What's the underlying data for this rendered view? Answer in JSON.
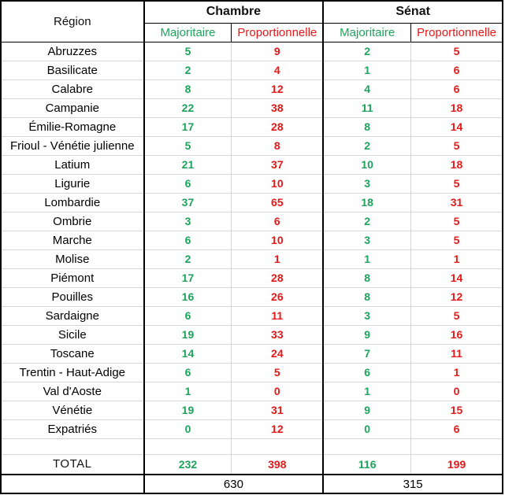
{
  "chart_data": {
    "type": "table",
    "header": {
      "region": "Région",
      "groups": [
        {
          "label": "Chambre",
          "subcolumns": [
            "Majoritaire",
            "Proportionnelle"
          ]
        },
        {
          "label": "Sénat",
          "subcolumns": [
            "Majoritaire",
            "Proportionnelle"
          ]
        }
      ]
    },
    "rows": [
      {
        "region": "Abruzzes",
        "values": [
          5,
          9,
          2,
          5
        ]
      },
      {
        "region": "Basilicate",
        "values": [
          2,
          4,
          1,
          6
        ]
      },
      {
        "region": "Calabre",
        "values": [
          8,
          12,
          4,
          6
        ]
      },
      {
        "region": "Campanie",
        "values": [
          22,
          38,
          11,
          18
        ]
      },
      {
        "region": "Émilie-Romagne",
        "values": [
          17,
          28,
          8,
          14
        ]
      },
      {
        "region": "Frioul - Vénétie julienne",
        "values": [
          5,
          8,
          2,
          5
        ]
      },
      {
        "region": "Latium",
        "values": [
          21,
          37,
          10,
          18
        ]
      },
      {
        "region": "Ligurie",
        "values": [
          6,
          10,
          3,
          5
        ]
      },
      {
        "region": "Lombardie",
        "values": [
          37,
          65,
          18,
          31
        ]
      },
      {
        "region": "Ombrie",
        "values": [
          3,
          6,
          2,
          5
        ]
      },
      {
        "region": "Marche",
        "values": [
          6,
          10,
          3,
          5
        ]
      },
      {
        "region": "Molise",
        "values": [
          2,
          1,
          1,
          1
        ]
      },
      {
        "region": "Piémont",
        "values": [
          17,
          28,
          8,
          14
        ]
      },
      {
        "region": "Pouilles",
        "values": [
          16,
          26,
          8,
          12
        ]
      },
      {
        "region": "Sardaigne",
        "values": [
          6,
          11,
          3,
          5
        ]
      },
      {
        "region": "Sicile",
        "values": [
          19,
          33,
          9,
          16
        ]
      },
      {
        "region": "Toscane",
        "values": [
          14,
          24,
          7,
          11
        ]
      },
      {
        "region": "Trentin - Haut-Adige",
        "values": [
          6,
          5,
          6,
          1
        ]
      },
      {
        "region": "Val d'Aoste",
        "values": [
          1,
          0,
          1,
          0
        ]
      },
      {
        "region": "Vénétie",
        "values": [
          19,
          31,
          9,
          15
        ]
      },
      {
        "region": "Expatriés",
        "values": [
          0,
          12,
          0,
          6
        ]
      }
    ],
    "total_row": {
      "label": "TOTAL",
      "values": [
        232,
        398,
        116,
        199
      ]
    },
    "grand_total_row": {
      "chambre": 630,
      "senat": 315
    }
  },
  "colors": {
    "majoritaire_green": "#1ea35c",
    "proportionnelle_red": "#e81717",
    "gridline_gray": "#d6d6d6",
    "border_black": "#000000"
  }
}
